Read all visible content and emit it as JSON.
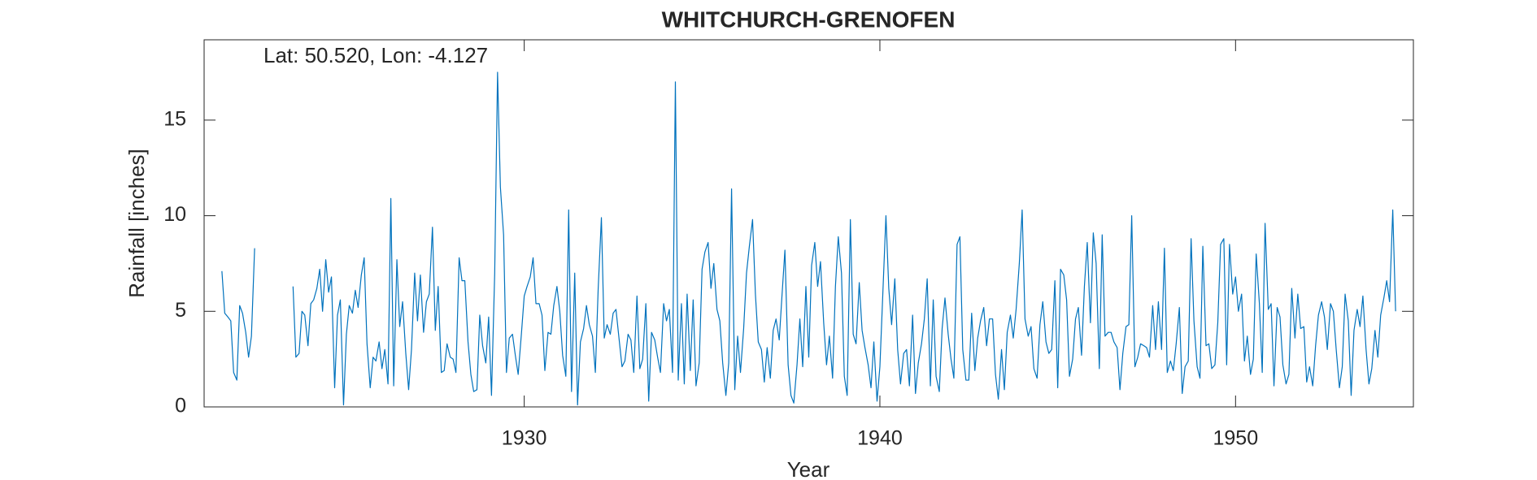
{
  "chart_data": {
    "type": "line",
    "title": "WHITCHURCH-GRENOFEN",
    "annotation": "Lat: 50.520, Lon: -4.127",
    "xlabel": "Year",
    "ylabel": "Rainfall [inches]",
    "color": "#0072bd",
    "xlim": [
      1921,
      1955
    ],
    "ylim": [
      0,
      19.2
    ],
    "xticks": [
      1930,
      1940,
      1950
    ],
    "yticks": [
      0,
      5,
      10,
      15
    ],
    "x": [
      1921.5,
      1921.58,
      1921.67,
      1921.75,
      1921.83,
      1921.92,
      1922,
      1922.08,
      1922.17,
      1922.25,
      1922.33,
      1922.42,
      1923,
      1923.5,
      1923.58,
      1923.67,
      1923.75,
      1923.83,
      1923.92,
      1924,
      1924.08,
      1924.17,
      1924.25,
      1924.33,
      1924.42,
      1924.5,
      1924.58,
      1924.67,
      1924.75,
      1924.83,
      1924.92,
      1925,
      1925.08,
      1925.17,
      1925.25,
      1925.33,
      1925.42,
      1925.5,
      1925.58,
      1925.67,
      1925.75,
      1925.83,
      1925.92,
      1926,
      1926.08,
      1926.17,
      1926.25,
      1926.33,
      1926.42,
      1926.5,
      1926.58,
      1926.67,
      1926.75,
      1926.83,
      1926.92,
      1927,
      1927.08,
      1927.17,
      1927.25,
      1927.33,
      1927.42,
      1927.5,
      1927.58,
      1927.67,
      1927.75,
      1927.83,
      1927.92,
      1928,
      1928.08,
      1928.17,
      1928.25,
      1928.33,
      1928.42,
      1928.5,
      1928.58,
      1928.67,
      1928.75,
      1928.83,
      1928.92,
      1929,
      1929.08,
      1929.17,
      1929.25,
      1929.33,
      1929.42,
      1929.5,
      1929.58,
      1929.67,
      1929.75,
      1929.83,
      1929.92,
      1930,
      1930.08,
      1930.17,
      1930.25,
      1930.33,
      1930.42,
      1930.5,
      1930.58,
      1930.67,
      1930.75,
      1930.83,
      1930.92,
      1931,
      1931.08,
      1931.17,
      1931.25,
      1931.33,
      1931.42,
      1931.5,
      1931.58,
      1931.67,
      1931.75,
      1931.83,
      1931.92,
      1932,
      1932.08,
      1932.17,
      1932.25,
      1932.33,
      1932.42,
      1932.5,
      1932.58,
      1932.67,
      1932.75,
      1932.83,
      1932.92,
      1933,
      1933.08,
      1933.17,
      1933.25,
      1933.33,
      1933.42,
      1933.5,
      1933.58,
      1933.67,
      1933.75,
      1933.83,
      1933.92,
      1934,
      1934.08,
      1934.17,
      1934.25,
      1934.33,
      1934.42,
      1934.5,
      1934.58,
      1934.67,
      1934.75,
      1934.83,
      1934.92,
      1935,
      1935.08,
      1935.17,
      1935.25,
      1935.33,
      1935.42,
      1935.5,
      1935.58,
      1935.67,
      1935.75,
      1935.83,
      1935.92,
      1936,
      1936.08,
      1936.17,
      1936.25,
      1936.33,
      1936.42,
      1936.5,
      1936.58,
      1936.67,
      1936.75,
      1936.83,
      1936.92,
      1937,
      1937.08,
      1937.17,
      1937.25,
      1937.33,
      1937.42,
      1937.5,
      1937.58,
      1937.67,
      1937.75,
      1937.83,
      1937.92,
      1938,
      1938.08,
      1938.17,
      1938.25,
      1938.33,
      1938.42,
      1938.5,
      1938.58,
      1938.67,
      1938.75,
      1938.83,
      1938.92,
      1939,
      1939.08,
      1939.17,
      1939.25,
      1939.33,
      1939.42,
      1939.5,
      1939.58,
      1939.67,
      1939.75,
      1939.83,
      1939.92,
      1940,
      1940.08,
      1940.17,
      1940.25,
      1940.33,
      1940.42,
      1940.5,
      1940.58,
      1940.67,
      1940.75,
      1940.83,
      1940.92,
      1941,
      1941.08,
      1941.17,
      1941.25,
      1941.33,
      1941.42,
      1941.5,
      1941.58,
      1941.67,
      1941.75,
      1941.83,
      1941.92,
      1942,
      1942.08,
      1942.17,
      1942.25,
      1942.33,
      1942.42,
      1942.5,
      1942.58,
      1942.67,
      1942.75,
      1942.83,
      1942.92,
      1943,
      1943.08,
      1943.17,
      1943.25,
      1943.33,
      1943.42,
      1943.5,
      1943.58,
      1943.67,
      1943.75,
      1943.83,
      1943.92,
      1944,
      1944.08,
      1944.17,
      1944.25,
      1944.33,
      1944.42,
      1944.5,
      1944.58,
      1944.67,
      1944.75,
      1944.83,
      1944.92,
      1945,
      1945.08,
      1945.17,
      1945.25,
      1945.33,
      1945.42,
      1945.5,
      1945.58,
      1945.67,
      1945.75,
      1945.83,
      1945.92,
      1946,
      1946.08,
      1946.17,
      1946.25,
      1946.33,
      1946.42,
      1946.5,
      1946.58,
      1946.67,
      1946.75,
      1946.83,
      1946.92,
      1947,
      1947.08,
      1947.17,
      1947.25,
      1947.33,
      1947.42,
      1947.5,
      1947.58,
      1947.67,
      1947.75,
      1947.83,
      1947.92,
      1948,
      1948.08,
      1948.17,
      1948.25,
      1948.33,
      1948.42,
      1948.5,
      1948.58,
      1948.67,
      1948.75,
      1948.83,
      1948.92,
      1949,
      1949.08,
      1949.17,
      1949.25,
      1949.33,
      1949.42,
      1949.5,
      1949.58,
      1949.67,
      1949.75,
      1949.83,
      1949.92,
      1950,
      1950.08,
      1950.17,
      1950.25,
      1950.33,
      1950.42,
      1950.5,
      1950.58,
      1950.67,
      1950.75,
      1950.83,
      1950.92,
      1951,
      1951.08,
      1951.17,
      1951.25,
      1951.33,
      1951.42,
      1951.5,
      1951.58,
      1951.67,
      1951.75,
      1951.83,
      1951.92,
      1952,
      1952.08,
      1952.17,
      1952.25,
      1952.33,
      1952.42,
      1952.5,
      1952.58,
      1952.67,
      1952.75,
      1952.83,
      1952.92,
      1953,
      1953.08,
      1953.17,
      1953.25,
      1953.33,
      1953.42,
      1953.5,
      1953.58,
      1953.67,
      1953.75,
      1953.83,
      1953.92,
      1954,
      1954.08,
      1954.17,
      1954.25,
      1954.33,
      1954.42,
      1954.5
    ],
    "values": [
      7.1,
      4.9,
      4.7,
      4.5,
      1.8,
      1.4,
      5.3,
      4.9,
      3.9,
      2.6,
      3.7,
      8.3,
      null,
      6.3,
      2.6,
      2.8,
      5.0,
      4.8,
      3.2,
      5.4,
      5.6,
      6.2,
      7.2,
      5.0,
      7.7,
      6.0,
      6.8,
      1.0,
      4.8,
      5.6,
      0.1,
      3.8,
      5.3,
      4.9,
      6.1,
      5.2,
      6.9,
      7.8,
      3.3,
      1.0,
      2.6,
      2.4,
      3.4,
      2.0,
      3.0,
      1.2,
      10.9,
      1.1,
      7.7,
      4.2,
      5.5,
      2.8,
      0.9,
      3.0,
      7.0,
      4.5,
      6.9,
      3.9,
      5.5,
      5.9,
      9.4,
      4.0,
      6.3,
      1.8,
      1.9,
      3.3,
      2.6,
      2.5,
      1.8,
      7.8,
      6.6,
      6.6,
      3.4,
      1.7,
      0.8,
      0.9,
      4.8,
      3.2,
      2.3,
      4.7,
      0.6,
      7.0,
      17.5,
      11.5,
      9.0,
      1.8,
      3.6,
      3.8,
      2.7,
      1.7,
      3.8,
      5.8,
      6.3,
      6.8,
      7.8,
      5.4,
      5.4,
      4.8,
      1.9,
      3.9,
      3.8,
      5.3,
      6.3,
      5.0,
      2.7,
      1.6,
      10.3,
      0.8,
      7.0,
      0.1,
      3.4,
      4.1,
      5.3,
      4.3,
      3.7,
      1.8,
      6.2,
      9.9,
      3.6,
      4.3,
      3.8,
      4.9,
      5.1,
      3.5,
      2.1,
      2.4,
      3.8,
      3.5,
      1.8,
      5.8,
      2.0,
      2.5,
      5.4,
      0.3,
      3.9,
      3.5,
      2.6,
      1.8,
      5.4,
      4.5,
      5.1,
      1.8,
      17.0,
      1.4,
      5.4,
      1.2,
      5.9,
      1.9,
      5.6,
      1.1,
      2.3,
      7.2,
      8.1,
      8.6,
      6.2,
      7.5,
      5.1,
      4.5,
      2.3,
      0.6,
      2.3,
      11.4,
      0.9,
      3.7,
      1.8,
      4.1,
      7.0,
      8.4,
      9.8,
      5.9,
      3.4,
      3.0,
      1.3,
      3.1,
      1.5,
      4.0,
      4.6,
      3.5,
      5.9,
      8.2,
      2.2,
      0.6,
      0.2,
      2.2,
      4.6,
      2.1,
      6.3,
      2.6,
      7.4,
      8.6,
      6.3,
      7.6,
      4.4,
      2.2,
      3.7,
      1.5,
      6.3,
      8.9,
      7.0,
      1.6,
      0.6,
      9.8,
      3.8,
      3.3,
      6.5,
      4.0,
      3.1,
      2.2,
      1.0,
      3.4,
      0.3,
      2.1,
      5.8,
      10.0,
      6.2,
      4.3,
      6.7,
      3.0,
      1.2,
      2.8,
      3.0,
      1.1,
      4.8,
      0.7,
      2.3,
      3.3,
      4.6,
      6.7,
      1.1,
      5.6,
      1.6,
      0.8,
      4.1,
      5.7,
      3.8,
      2.5,
      1.5,
      8.5,
      8.9,
      3.0,
      1.4,
      1.4,
      4.9,
      1.9,
      3.6,
      4.5,
      5.2,
      3.2,
      4.6,
      4.6,
      1.7,
      0.4,
      3.0,
      0.9,
      3.9,
      4.8,
      3.6,
      5.1,
      7.5,
      10.3,
      4.6,
      3.7,
      4.2,
      2.0,
      1.5,
      4.3,
      5.5,
      3.4,
      2.8,
      3.0,
      6.6,
      1.0,
      7.2,
      6.9,
      5.6,
      1.6,
      2.5,
      4.6,
      5.2,
      2.7,
      6.3,
      8.6,
      4.4,
      9.1,
      7.5,
      2.0,
      9.0,
      3.7,
      3.9,
      3.9,
      3.4,
      3.1,
      0.9,
      2.8,
      4.2,
      4.3,
      10.0,
      2.1,
      2.6,
      3.3,
      3.2,
      3.1,
      2.6,
      5.3,
      3.0,
      5.5,
      3.0,
      8.3,
      1.8,
      2.4,
      1.9,
      3.3,
      5.2,
      0.7,
      2.1,
      2.4,
      8.8,
      4.5,
      2.1,
      1.5,
      8.4,
      3.2,
      3.3,
      2.0,
      2.2,
      4.4,
      8.5,
      8.8,
      2.2,
      8.5,
      5.9,
      6.8,
      5.0,
      5.9,
      2.4,
      3.7,
      1.7,
      2.5,
      8.0,
      5.4,
      1.8,
      9.6,
      5.1,
      5.4,
      1.1,
      5.2,
      4.7,
      2.2,
      1.2,
      1.7,
      6.2,
      3.6,
      5.9,
      4.1,
      4.2,
      1.3,
      2.1,
      1.1,
      3.2,
      4.8,
      5.5,
      4.7,
      3.0,
      5.4,
      5.0,
      3.0,
      1.0,
      2.1,
      5.9,
      4.5,
      0.6,
      4.0,
      5.1,
      4.2,
      5.8,
      3.0,
      1.2,
      2.0,
      4.0,
      2.6,
      4.8,
      5.7,
      6.6,
      5.5,
      10.3,
      5.0
    ]
  }
}
